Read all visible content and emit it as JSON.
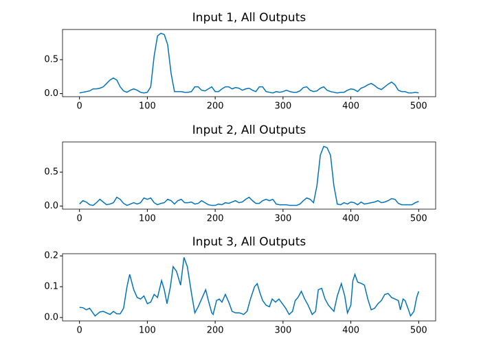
{
  "chart_data": [
    {
      "type": "line",
      "title": "Input 1, All Outputs",
      "x": [
        0,
        5,
        10,
        15,
        20,
        25,
        30,
        35,
        40,
        45,
        50,
        55,
        60,
        65,
        70,
        75,
        80,
        85,
        90,
        95,
        100,
        105,
        110,
        115,
        120,
        125,
        130,
        135,
        140,
        145,
        150,
        155,
        160,
        165,
        170,
        175,
        180,
        185,
        190,
        195,
        200,
        205,
        210,
        215,
        220,
        225,
        230,
        235,
        240,
        245,
        250,
        255,
        260,
        265,
        270,
        275,
        280,
        285,
        290,
        295,
        300,
        305,
        310,
        315,
        320,
        325,
        330,
        335,
        340,
        345,
        350,
        355,
        360,
        365,
        370,
        375,
        380,
        385,
        390,
        395,
        400,
        405,
        410,
        415,
        420,
        425,
        430,
        435,
        440,
        445,
        450,
        455,
        460,
        465,
        470,
        475,
        480,
        485,
        490,
        495,
        500
      ],
      "series": [
        {
          "name": "Outputs",
          "color": "#0072bd",
          "values": [
            0.01,
            0.02,
            0.03,
            0.04,
            0.07,
            0.07,
            0.08,
            0.1,
            0.15,
            0.2,
            0.23,
            0.2,
            0.1,
            0.04,
            0.02,
            0.05,
            0.07,
            0.05,
            0.02,
            0.01,
            0.02,
            0.1,
            0.55,
            0.85,
            0.89,
            0.87,
            0.72,
            0.3,
            0.03,
            0.03,
            0.03,
            0.02,
            0.02,
            0.03,
            0.1,
            0.1,
            0.05,
            0.04,
            0.07,
            0.1,
            0.03,
            0.03,
            0.07,
            0.1,
            0.1,
            0.07,
            0.09,
            0.08,
            0.05,
            0.07,
            0.08,
            0.05,
            0.03,
            0.1,
            0.1,
            0.03,
            0.02,
            0.01,
            0.03,
            0.02,
            0.03,
            0.05,
            0.03,
            0.02,
            0.02,
            0.04,
            0.09,
            0.1,
            0.05,
            0.03,
            0.04,
            0.08,
            0.1,
            0.05,
            0.03,
            0.02,
            0.01,
            0.02,
            0.02,
            0.05,
            0.07,
            0.06,
            0.03,
            0.08,
            0.1,
            0.13,
            0.15,
            0.12,
            0.08,
            0.06,
            0.1,
            0.14,
            0.17,
            0.13,
            0.05,
            0.03,
            0.03,
            0.01,
            0.01,
            0.02,
            0.01
          ]
        }
      ],
      "xlim": [
        -25,
        525
      ],
      "xticks": [
        0,
        100,
        200,
        300,
        400,
        500
      ],
      "ylim": [
        -0.045,
        0.945
      ],
      "yticks": [
        {
          "value": 0,
          "label": "0.0"
        },
        0.5
      ]
    },
    {
      "type": "line",
      "title": "Input 2, All Outputs",
      "x": [
        0,
        5,
        10,
        15,
        20,
        25,
        30,
        35,
        40,
        45,
        50,
        55,
        60,
        65,
        70,
        75,
        80,
        85,
        90,
        95,
        100,
        105,
        110,
        115,
        120,
        125,
        130,
        135,
        140,
        145,
        150,
        155,
        160,
        165,
        170,
        175,
        180,
        185,
        190,
        195,
        200,
        205,
        210,
        215,
        220,
        225,
        230,
        235,
        240,
        245,
        250,
        255,
        260,
        265,
        270,
        275,
        280,
        285,
        290,
        295,
        300,
        305,
        310,
        315,
        320,
        325,
        330,
        335,
        340,
        345,
        350,
        355,
        360,
        365,
        370,
        375,
        380,
        385,
        390,
        395,
        400,
        405,
        410,
        415,
        420,
        425,
        430,
        435,
        440,
        445,
        450,
        455,
        460,
        465,
        470,
        475,
        480,
        485,
        490,
        495,
        500
      ],
      "series": [
        {
          "name": "Outputs",
          "color": "#0072bd",
          "values": [
            0.03,
            0.08,
            0.06,
            0.02,
            0.01,
            0.05,
            0.1,
            0.06,
            0.02,
            0.03,
            0.05,
            0.13,
            0.1,
            0.04,
            0.01,
            0.03,
            0.05,
            0.03,
            0.05,
            0.12,
            0.1,
            0.12,
            0.05,
            0.02,
            0.04,
            0.05,
            0.1,
            0.08,
            0.03,
            0.08,
            0.1,
            0.05,
            0.05,
            0.06,
            0.03,
            0.04,
            0.08,
            0.05,
            0.02,
            0.01,
            0.01,
            0.03,
            0.02,
            0.05,
            0.04,
            0.06,
            0.08,
            0.05,
            0.06,
            0.1,
            0.13,
            0.08,
            0.04,
            0.04,
            0.08,
            0.1,
            0.08,
            0.1,
            0.03,
            0.02,
            0.02,
            0.02,
            0.01,
            0.01,
            0.01,
            0.03,
            0.08,
            0.12,
            0.1,
            0.05,
            0.3,
            0.75,
            0.88,
            0.86,
            0.75,
            0.3,
            0.03,
            0.02,
            0.05,
            0.03,
            0.06,
            0.05,
            0.02,
            0.06,
            0.03,
            0.04,
            0.05,
            0.06,
            0.08,
            0.05,
            0.06,
            0.08,
            0.11,
            0.1,
            0.04,
            0.02,
            0.02,
            0.02,
            0.02,
            0.05,
            0.07
          ]
        }
      ],
      "xlim": [
        -25,
        525
      ],
      "xticks": [
        0,
        100,
        200,
        300,
        400,
        500
      ],
      "ylim": [
        -0.045,
        0.945
      ],
      "yticks": [
        {
          "value": 0,
          "label": "0.0"
        },
        0.5
      ]
    },
    {
      "type": "line",
      "title": "Input 3, All Outputs",
      "x": [
        0,
        5,
        10,
        15,
        23,
        30,
        35,
        45,
        50,
        55,
        60,
        65,
        70,
        74,
        80,
        85,
        90,
        95,
        100,
        105,
        110,
        115,
        121,
        125,
        129,
        134,
        138,
        143,
        149,
        154,
        159,
        165,
        170,
        175,
        180,
        186,
        190,
        195,
        197,
        202,
        206,
        210,
        215,
        220,
        225,
        230,
        236,
        242,
        247,
        252,
        258,
        262,
        266,
        270,
        275,
        280,
        284,
        289,
        294,
        299,
        304,
        309,
        314,
        318,
        322,
        327,
        332,
        337,
        343,
        348,
        352,
        357,
        362,
        367,
        371,
        375,
        380,
        386,
        391,
        395,
        400,
        403,
        406,
        410,
        416,
        420,
        425,
        430,
        435,
        440,
        445,
        450,
        455,
        460,
        465,
        470,
        473,
        477,
        480,
        485,
        488,
        493,
        497,
        500
      ],
      "series": [
        {
          "name": "Outputs",
          "color": "#0072bd",
          "values": [
            0.033,
            0.032,
            0.025,
            0.03,
            0.005,
            0.018,
            0.02,
            0.01,
            0.02,
            0.012,
            0.012,
            0.03,
            0.1,
            0.14,
            0.09,
            0.065,
            0.06,
            0.07,
            0.045,
            0.05,
            0.075,
            0.065,
            0.12,
            0.09,
            0.045,
            0.1,
            0.165,
            0.15,
            0.105,
            0.195,
            0.165,
            0.08,
            0.015,
            0.035,
            0.06,
            0.09,
            0.055,
            0.015,
            0.01,
            0.055,
            0.06,
            0.05,
            0.075,
            0.05,
            0.02,
            0.015,
            0.015,
            0.01,
            0.02,
            0.06,
            0.1,
            0.11,
            0.08,
            0.055,
            0.04,
            0.035,
            0.06,
            0.05,
            0.06,
            0.045,
            0.03,
            0.01,
            0.02,
            0.055,
            0.065,
            0.085,
            0.06,
            0.04,
            0.01,
            0.02,
            0.09,
            0.095,
            0.06,
            0.04,
            0.03,
            0.02,
            0.07,
            0.11,
            0.07,
            0.015,
            0.04,
            0.12,
            0.14,
            0.115,
            0.11,
            0.105,
            0.06,
            0.025,
            0.03,
            0.045,
            0.055,
            0.075,
            0.078,
            0.065,
            0.06,
            0.055,
            0.025,
            0.06,
            0.055,
            0.025,
            0.005,
            0.02,
            0.065,
            0.085
          ]
        }
      ],
      "xlim": [
        -25,
        525
      ],
      "xticks": [
        0,
        100,
        200,
        300,
        400,
        500
      ],
      "ylim": [
        -0.011,
        0.207
      ],
      "yticks": [
        {
          "value": 0,
          "label": "0.0"
        },
        0.1,
        0.2
      ]
    }
  ]
}
